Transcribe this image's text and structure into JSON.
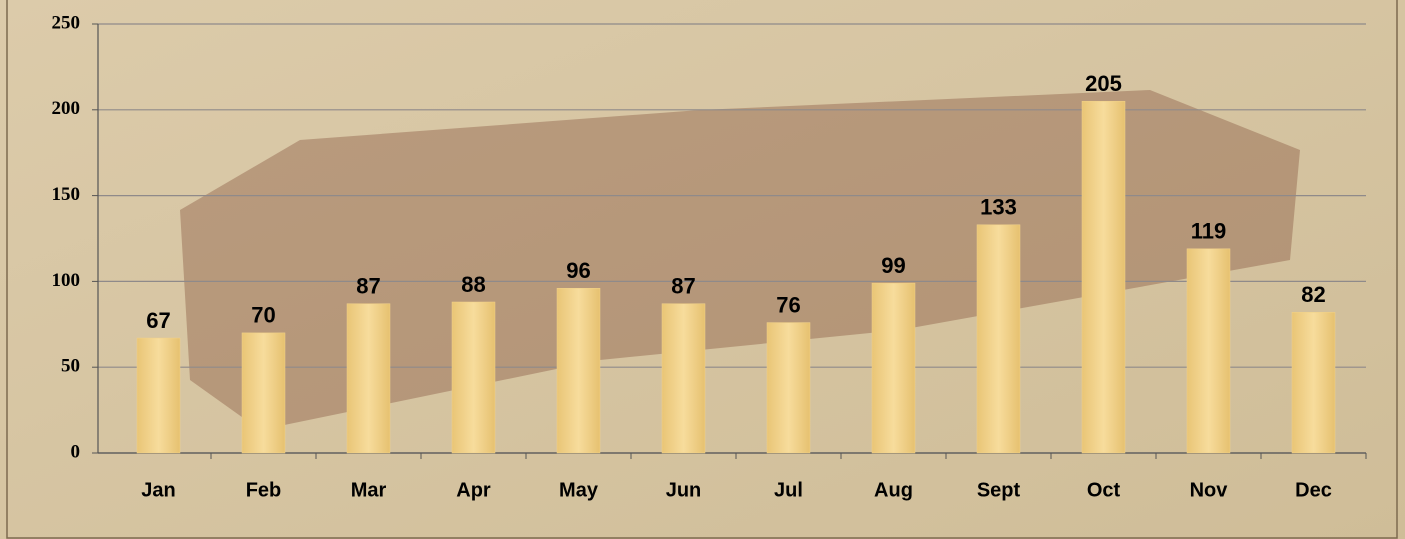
{
  "chart_data": {
    "type": "bar",
    "categories": [
      "Jan",
      "Feb",
      "Mar",
      "Apr",
      "May",
      "Jun",
      "Jul",
      "Aug",
      "Sept",
      "Oct",
      "Nov",
      "Dec"
    ],
    "values": [
      67,
      70,
      87,
      88,
      96,
      87,
      76,
      99,
      133,
      205,
      119,
      82
    ],
    "color": "#f2d28a",
    "ylim": [
      0,
      250
    ],
    "yticks": [
      0,
      50,
      100,
      150,
      200,
      250
    ],
    "grid": true
  }
}
